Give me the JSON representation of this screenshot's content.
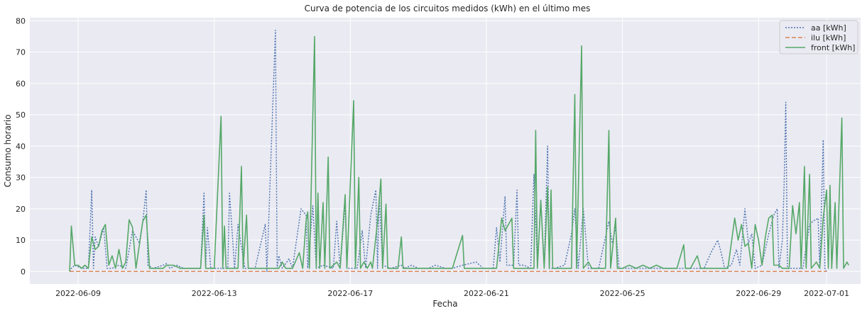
{
  "chart_data": {
    "type": "line",
    "title": "Curva de potencia de los circuitos medidos (kWh) en el último mes",
    "xlabel": "Fecha",
    "ylabel": "Consumo horario",
    "x_tick_labels": [
      "2022-06-09",
      "2022-06-13",
      "2022-06-17",
      "2022-06-21",
      "2022-06-25",
      "2022-06-29",
      "2022-07-01"
    ],
    "x_tick_days": [
      9,
      13,
      17,
      21,
      25,
      29,
      31
    ],
    "xlim": [
      7.58,
      32.0
    ],
    "ylim": [
      -4,
      81
    ],
    "y_ticks": [
      0,
      10,
      20,
      30,
      40,
      50,
      60,
      70,
      80
    ],
    "grid": true,
    "legend_position": "top-right",
    "series": [
      {
        "name": "aa [kWh]",
        "style": "dotted",
        "color": "#4c72b0",
        "points": [
          [
            8.75,
            0
          ],
          [
            8.8,
            1
          ],
          [
            8.9,
            2
          ],
          [
            9.1,
            1
          ],
          [
            9.3,
            1
          ],
          [
            9.4,
            26
          ],
          [
            9.45,
            1
          ],
          [
            9.5,
            11
          ],
          [
            9.6,
            8
          ],
          [
            9.75,
            14
          ],
          [
            9.85,
            1
          ],
          [
            10,
            1
          ],
          [
            10.2,
            2
          ],
          [
            10.4,
            1
          ],
          [
            10.6,
            13
          ],
          [
            10.8,
            9
          ],
          [
            10.9,
            16
          ],
          [
            11.0,
            26
          ],
          [
            11.05,
            2
          ],
          [
            11.2,
            1
          ],
          [
            11.5,
            2
          ],
          [
            11.6,
            2.5
          ],
          [
            11.7,
            1
          ],
          [
            11.9,
            2
          ],
          [
            12.1,
            1
          ],
          [
            12.4,
            1
          ],
          [
            12.6,
            1
          ],
          [
            12.7,
            25
          ],
          [
            12.75,
            1
          ],
          [
            12.8,
            14
          ],
          [
            12.9,
            1
          ],
          [
            13.2,
            1
          ],
          [
            13.4,
            1
          ],
          [
            13.45,
            25
          ],
          [
            13.5,
            17
          ],
          [
            13.6,
            1
          ],
          [
            13.7,
            15
          ],
          [
            13.8,
            8
          ],
          [
            13.9,
            1
          ],
          [
            14.2,
            1
          ],
          [
            14.5,
            15
          ],
          [
            14.55,
            0
          ],
          [
            14.8,
            77
          ],
          [
            14.85,
            1
          ],
          [
            14.9,
            5
          ],
          [
            15.0,
            1
          ],
          [
            15.2,
            4
          ],
          [
            15.3,
            1
          ],
          [
            15.55,
            20
          ],
          [
            15.7,
            18
          ],
          [
            15.75,
            1
          ],
          [
            15.9,
            21
          ],
          [
            16.0,
            1
          ],
          [
            16.2,
            2
          ],
          [
            16.5,
            1
          ],
          [
            16.6,
            16
          ],
          [
            16.7,
            1
          ],
          [
            16.85,
            22
          ],
          [
            16.9,
            1
          ],
          [
            17.2,
            1
          ],
          [
            17.35,
            13
          ],
          [
            17.45,
            1
          ],
          [
            17.6,
            18
          ],
          [
            17.75,
            26
          ],
          [
            17.8,
            1
          ],
          [
            17.85,
            24
          ],
          [
            17.95,
            2
          ],
          [
            18.2,
            1
          ],
          [
            18.5,
            2
          ],
          [
            18.6,
            1
          ],
          [
            18.8,
            2
          ],
          [
            19.0,
            1
          ],
          [
            19.3,
            1
          ],
          [
            19.5,
            2
          ],
          [
            19.8,
            1
          ],
          [
            20.0,
            1
          ],
          [
            20.3,
            2
          ],
          [
            20.7,
            3
          ],
          [
            20.9,
            1
          ],
          [
            21.2,
            1
          ],
          [
            21.3,
            14
          ],
          [
            21.4,
            3
          ],
          [
            21.55,
            24
          ],
          [
            21.6,
            2
          ],
          [
            21.8,
            2
          ],
          [
            21.9,
            26
          ],
          [
            21.95,
            2
          ],
          [
            22.1,
            2
          ],
          [
            22.3,
            1
          ],
          [
            22.4,
            31
          ],
          [
            22.5,
            2
          ],
          [
            22.6,
            23
          ],
          [
            22.7,
            2
          ],
          [
            22.8,
            40
          ],
          [
            22.85,
            1
          ],
          [
            23.0,
            1
          ],
          [
            23.3,
            2
          ],
          [
            23.5,
            12
          ],
          [
            23.6,
            20
          ],
          [
            23.7,
            1
          ],
          [
            23.85,
            20
          ],
          [
            24.0,
            1
          ],
          [
            24.3,
            1
          ],
          [
            24.6,
            16
          ],
          [
            24.7,
            9
          ],
          [
            24.8,
            14
          ],
          [
            24.9,
            1
          ],
          [
            25.2,
            1
          ],
          [
            25.5,
            1
          ],
          [
            25.8,
            1
          ],
          [
            26.2,
            1
          ],
          [
            26.6,
            1
          ],
          [
            27.0,
            1
          ],
          [
            27.4,
            1
          ],
          [
            27.6,
            6
          ],
          [
            27.8,
            10
          ],
          [
            27.9,
            6
          ],
          [
            28.0,
            1
          ],
          [
            28.2,
            2
          ],
          [
            28.35,
            7
          ],
          [
            28.45,
            2
          ],
          [
            28.6,
            20
          ],
          [
            28.7,
            9
          ],
          [
            28.8,
            12
          ],
          [
            28.9,
            1
          ],
          [
            29.1,
            2
          ],
          [
            29.3,
            12
          ],
          [
            29.45,
            18
          ],
          [
            29.55,
            20
          ],
          [
            29.6,
            1
          ],
          [
            29.7,
            10
          ],
          [
            29.75,
            27
          ],
          [
            29.8,
            54
          ],
          [
            29.85,
            1
          ],
          [
            30.0,
            1
          ],
          [
            30.3,
            1
          ],
          [
            30.5,
            15
          ],
          [
            30.6,
            16
          ],
          [
            30.75,
            17
          ],
          [
            30.8,
            1
          ],
          [
            30.9,
            42
          ],
          [
            30.95,
            1
          ],
          [
            31.0,
            0
          ]
        ]
      },
      {
        "name": "ilu [kWh]",
        "style": "dashed",
        "color": "#dd8452",
        "points": [
          [
            8.75,
            0
          ],
          [
            31.0,
            0
          ]
        ]
      },
      {
        "name": "front [kWh]",
        "style": "solid",
        "color": "#55a868",
        "points": [
          [
            8.75,
            0
          ],
          [
            8.8,
            14.5
          ],
          [
            8.9,
            2
          ],
          [
            9.0,
            2
          ],
          [
            9.1,
            1
          ],
          [
            9.2,
            2
          ],
          [
            9.3,
            1
          ],
          [
            9.4,
            11
          ],
          [
            9.5,
            7
          ],
          [
            9.6,
            8
          ],
          [
            9.7,
            13
          ],
          [
            9.8,
            15
          ],
          [
            9.9,
            2
          ],
          [
            10.0,
            5
          ],
          [
            10.1,
            1
          ],
          [
            10.2,
            7
          ],
          [
            10.3,
            1
          ],
          [
            10.4,
            3
          ],
          [
            10.5,
            16.5
          ],
          [
            10.6,
            14
          ],
          [
            10.7,
            1
          ],
          [
            10.9,
            16
          ],
          [
            11.0,
            18
          ],
          [
            11.1,
            1
          ],
          [
            11.3,
            1
          ],
          [
            11.5,
            1
          ],
          [
            11.6,
            2
          ],
          [
            11.8,
            2
          ],
          [
            12.0,
            1
          ],
          [
            12.2,
            1
          ],
          [
            12.4,
            1
          ],
          [
            12.6,
            1
          ],
          [
            12.7,
            18
          ],
          [
            12.75,
            1
          ],
          [
            13.0,
            1
          ],
          [
            13.2,
            49.5
          ],
          [
            13.25,
            1
          ],
          [
            13.3,
            14.5
          ],
          [
            13.35,
            1
          ],
          [
            13.5,
            1
          ],
          [
            13.7,
            1
          ],
          [
            13.8,
            33.5
          ],
          [
            13.85,
            1
          ],
          [
            13.95,
            18
          ],
          [
            14.0,
            1
          ],
          [
            14.4,
            1
          ],
          [
            14.6,
            1
          ],
          [
            14.9,
            1
          ],
          [
            15.0,
            3
          ],
          [
            15.1,
            1
          ],
          [
            15.3,
            1
          ],
          [
            15.5,
            6
          ],
          [
            15.6,
            1
          ],
          [
            15.7,
            16
          ],
          [
            15.75,
            19
          ],
          [
            15.8,
            1
          ],
          [
            15.95,
            75
          ],
          [
            16.0,
            1
          ],
          [
            16.05,
            25
          ],
          [
            16.1,
            1
          ],
          [
            16.2,
            22
          ],
          [
            16.25,
            1
          ],
          [
            16.35,
            36.5
          ],
          [
            16.4,
            1
          ],
          [
            16.6,
            3
          ],
          [
            16.7,
            1
          ],
          [
            16.85,
            24.5
          ],
          [
            16.9,
            1
          ],
          [
            17.1,
            54.5
          ],
          [
            17.15,
            1
          ],
          [
            17.25,
            30
          ],
          [
            17.3,
            1
          ],
          [
            17.4,
            3
          ],
          [
            17.5,
            1
          ],
          [
            17.6,
            3
          ],
          [
            17.65,
            1
          ],
          [
            17.8,
            16
          ],
          [
            17.9,
            29.5
          ],
          [
            17.95,
            1
          ],
          [
            18.05,
            21.5
          ],
          [
            18.1,
            1
          ],
          [
            18.2,
            1
          ],
          [
            18.4,
            1
          ],
          [
            18.5,
            11
          ],
          [
            18.55,
            1
          ],
          [
            18.7,
            1
          ],
          [
            19.0,
            1
          ],
          [
            19.3,
            1
          ],
          [
            19.6,
            1
          ],
          [
            20.0,
            1
          ],
          [
            20.3,
            11.5
          ],
          [
            20.35,
            1
          ],
          [
            20.5,
            1
          ],
          [
            20.7,
            1
          ],
          [
            20.9,
            1
          ],
          [
            21.1,
            1
          ],
          [
            21.3,
            1
          ],
          [
            21.45,
            17
          ],
          [
            21.55,
            13
          ],
          [
            21.65,
            15
          ],
          [
            21.75,
            17
          ],
          [
            21.8,
            1
          ],
          [
            22.0,
            1
          ],
          [
            22.2,
            1
          ],
          [
            22.4,
            1
          ],
          [
            22.45,
            45
          ],
          [
            22.5,
            1
          ],
          [
            22.6,
            22.5
          ],
          [
            22.7,
            1
          ],
          [
            22.8,
            27
          ],
          [
            22.85,
            1
          ],
          [
            22.9,
            26
          ],
          [
            22.95,
            1
          ],
          [
            23.1,
            1
          ],
          [
            23.3,
            1
          ],
          [
            23.5,
            1
          ],
          [
            23.6,
            56.5
          ],
          [
            23.65,
            1
          ],
          [
            23.8,
            72
          ],
          [
            23.85,
            1
          ],
          [
            24.0,
            3
          ],
          [
            24.1,
            1
          ],
          [
            24.3,
            1
          ],
          [
            24.5,
            1
          ],
          [
            24.6,
            45
          ],
          [
            24.65,
            1
          ],
          [
            24.8,
            17
          ],
          [
            24.85,
            1
          ],
          [
            25.0,
            1
          ],
          [
            25.2,
            2
          ],
          [
            25.4,
            1
          ],
          [
            25.6,
            2
          ],
          [
            25.8,
            1
          ],
          [
            26.0,
            2
          ],
          [
            26.2,
            1
          ],
          [
            26.4,
            1
          ],
          [
            26.6,
            1
          ],
          [
            26.8,
            8.5
          ],
          [
            26.85,
            1
          ],
          [
            27.0,
            1
          ],
          [
            27.2,
            5
          ],
          [
            27.3,
            1
          ],
          [
            27.5,
            1
          ],
          [
            27.7,
            1
          ],
          [
            27.9,
            1
          ],
          [
            28.1,
            1
          ],
          [
            28.3,
            17
          ],
          [
            28.4,
            10
          ],
          [
            28.5,
            15
          ],
          [
            28.6,
            8
          ],
          [
            28.7,
            9
          ],
          [
            28.8,
            1
          ],
          [
            28.9,
            15
          ],
          [
            29.0,
            10
          ],
          [
            29.1,
            2
          ],
          [
            29.2,
            11
          ],
          [
            29.3,
            17
          ],
          [
            29.4,
            18
          ],
          [
            29.45,
            2
          ],
          [
            29.6,
            2
          ],
          [
            29.7,
            1
          ],
          [
            29.9,
            1
          ],
          [
            30.0,
            21
          ],
          [
            30.1,
            12
          ],
          [
            30.2,
            22
          ],
          [
            30.25,
            1
          ],
          [
            30.35,
            33.5
          ],
          [
            30.4,
            1
          ],
          [
            30.5,
            31
          ],
          [
            30.55,
            1
          ],
          [
            30.7,
            3
          ],
          [
            30.8,
            1
          ],
          [
            30.9,
            17
          ],
          [
            31.0,
            26
          ],
          [
            31.05,
            1
          ],
          [
            31.1,
            27.5
          ],
          [
            31.15,
            1
          ],
          [
            31.25,
            22
          ],
          [
            31.3,
            1
          ],
          [
            31.45,
            49
          ],
          [
            31.5,
            1
          ],
          [
            31.6,
            3
          ],
          [
            31.65,
            2
          ]
        ]
      }
    ]
  }
}
